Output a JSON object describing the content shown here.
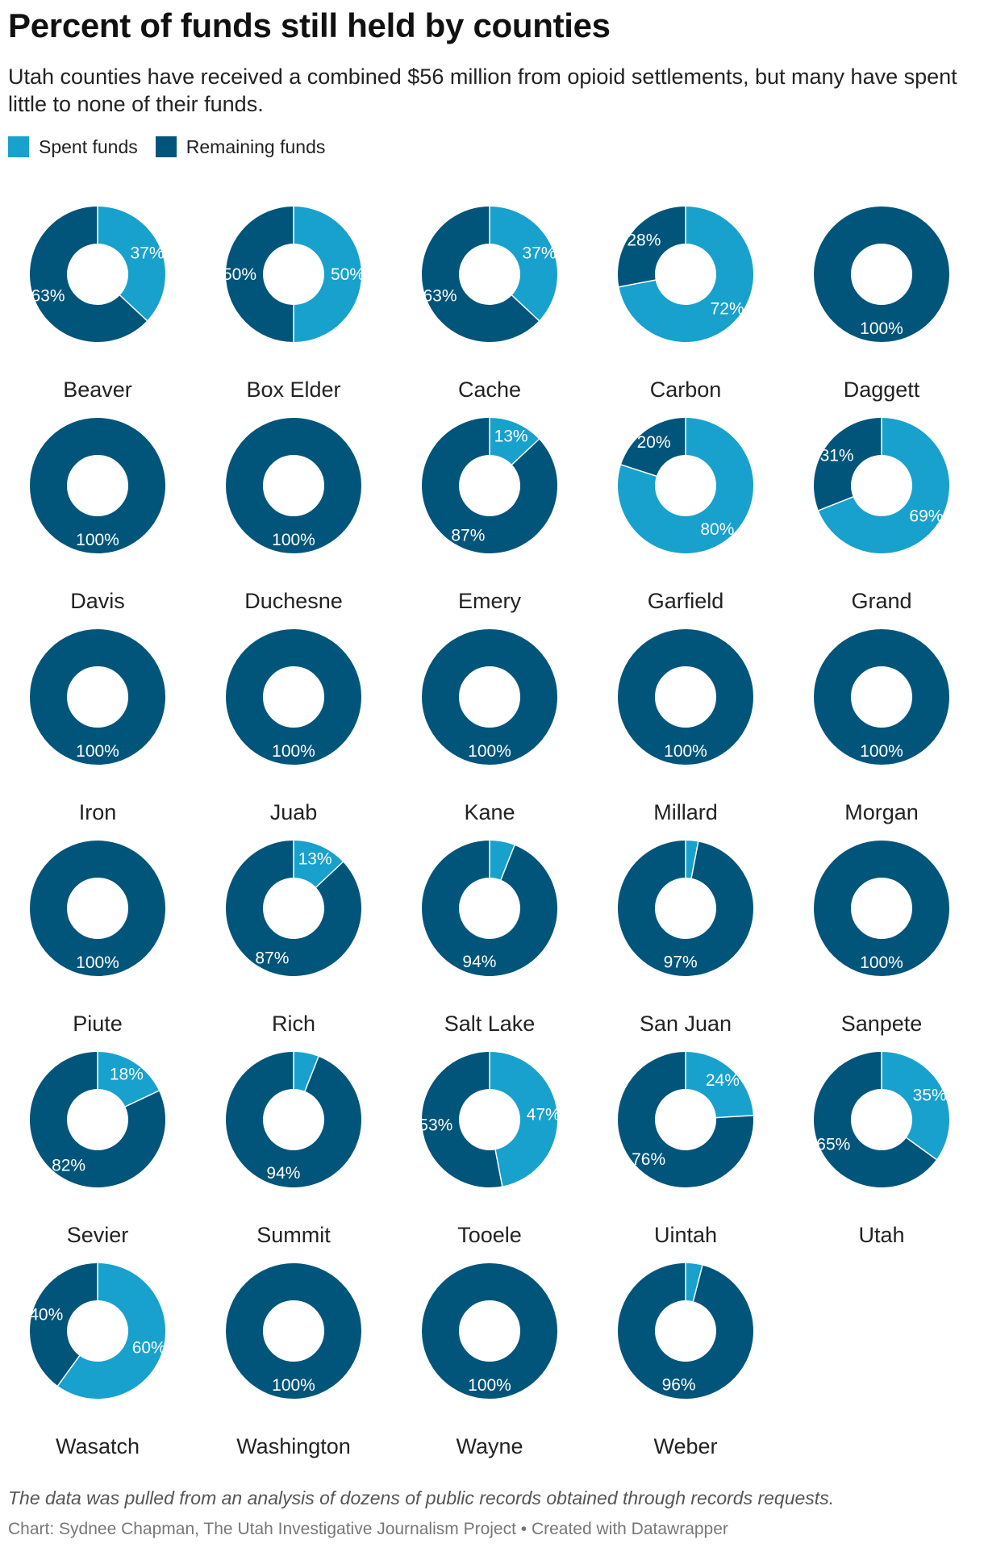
{
  "title": "Percent of funds still held by counties",
  "subtitle": "Utah counties have received a combined $56 million from opioid settlements, but many have spent little to none of their funds.",
  "legend": [
    {
      "label": "Spent funds",
      "color": "#18a1cd"
    },
    {
      "label": "Remaining funds",
      "color": "#02557a"
    }
  ],
  "footer": {
    "note": "The data was pulled from an analysis of dozens of public records obtained through records requests.",
    "credit": "Chart: Sydnee Chapman, The Utah Investigative Journalism Project • Created with Datawrapper"
  },
  "chart_data": {
    "type": "pie",
    "variant": "donut small multiples",
    "series_names": [
      "Spent funds",
      "Remaining funds"
    ],
    "colors": {
      "spent": "#18a1cd",
      "remaining": "#02557a"
    },
    "counties": [
      {
        "name": "Beaver",
        "spent": 37,
        "remaining": 63
      },
      {
        "name": "Box Elder",
        "spent": 50,
        "remaining": 50
      },
      {
        "name": "Cache",
        "spent": 37,
        "remaining": 63
      },
      {
        "name": "Carbon",
        "spent": 72,
        "remaining": 28
      },
      {
        "name": "Daggett",
        "spent": 0,
        "remaining": 100
      },
      {
        "name": "Davis",
        "spent": 0,
        "remaining": 100
      },
      {
        "name": "Duchesne",
        "spent": 0,
        "remaining": 100
      },
      {
        "name": "Emery",
        "spent": 13,
        "remaining": 87
      },
      {
        "name": "Garfield",
        "spent": 80,
        "remaining": 20
      },
      {
        "name": "Grand",
        "spent": 69,
        "remaining": 31
      },
      {
        "name": "Iron",
        "spent": 0,
        "remaining": 100
      },
      {
        "name": "Juab",
        "spent": 0,
        "remaining": 100
      },
      {
        "name": "Kane",
        "spent": 0,
        "remaining": 100
      },
      {
        "name": "Millard",
        "spent": 0,
        "remaining": 100
      },
      {
        "name": "Morgan",
        "spent": 0,
        "remaining": 100
      },
      {
        "name": "Piute",
        "spent": 0,
        "remaining": 100
      },
      {
        "name": "Rich",
        "spent": 13,
        "remaining": 87
      },
      {
        "name": "Salt Lake",
        "spent": 6,
        "remaining": 94
      },
      {
        "name": "San Juan",
        "spent": 3,
        "remaining": 97
      },
      {
        "name": "Sanpete",
        "spent": 0,
        "remaining": 100
      },
      {
        "name": "Sevier",
        "spent": 18,
        "remaining": 82
      },
      {
        "name": "Summit",
        "spent": 6,
        "remaining": 94
      },
      {
        "name": "Tooele",
        "spent": 47,
        "remaining": 53
      },
      {
        "name": "Uintah",
        "spent": 24,
        "remaining": 76
      },
      {
        "name": "Utah",
        "spent": 35,
        "remaining": 65
      },
      {
        "name": "Wasatch",
        "spent": 60,
        "remaining": 40
      },
      {
        "name": "Washington",
        "spent": 0,
        "remaining": 100
      },
      {
        "name": "Wayne",
        "spent": 0,
        "remaining": 100
      },
      {
        "name": "Weber",
        "spent": 4,
        "remaining": 96
      }
    ]
  }
}
